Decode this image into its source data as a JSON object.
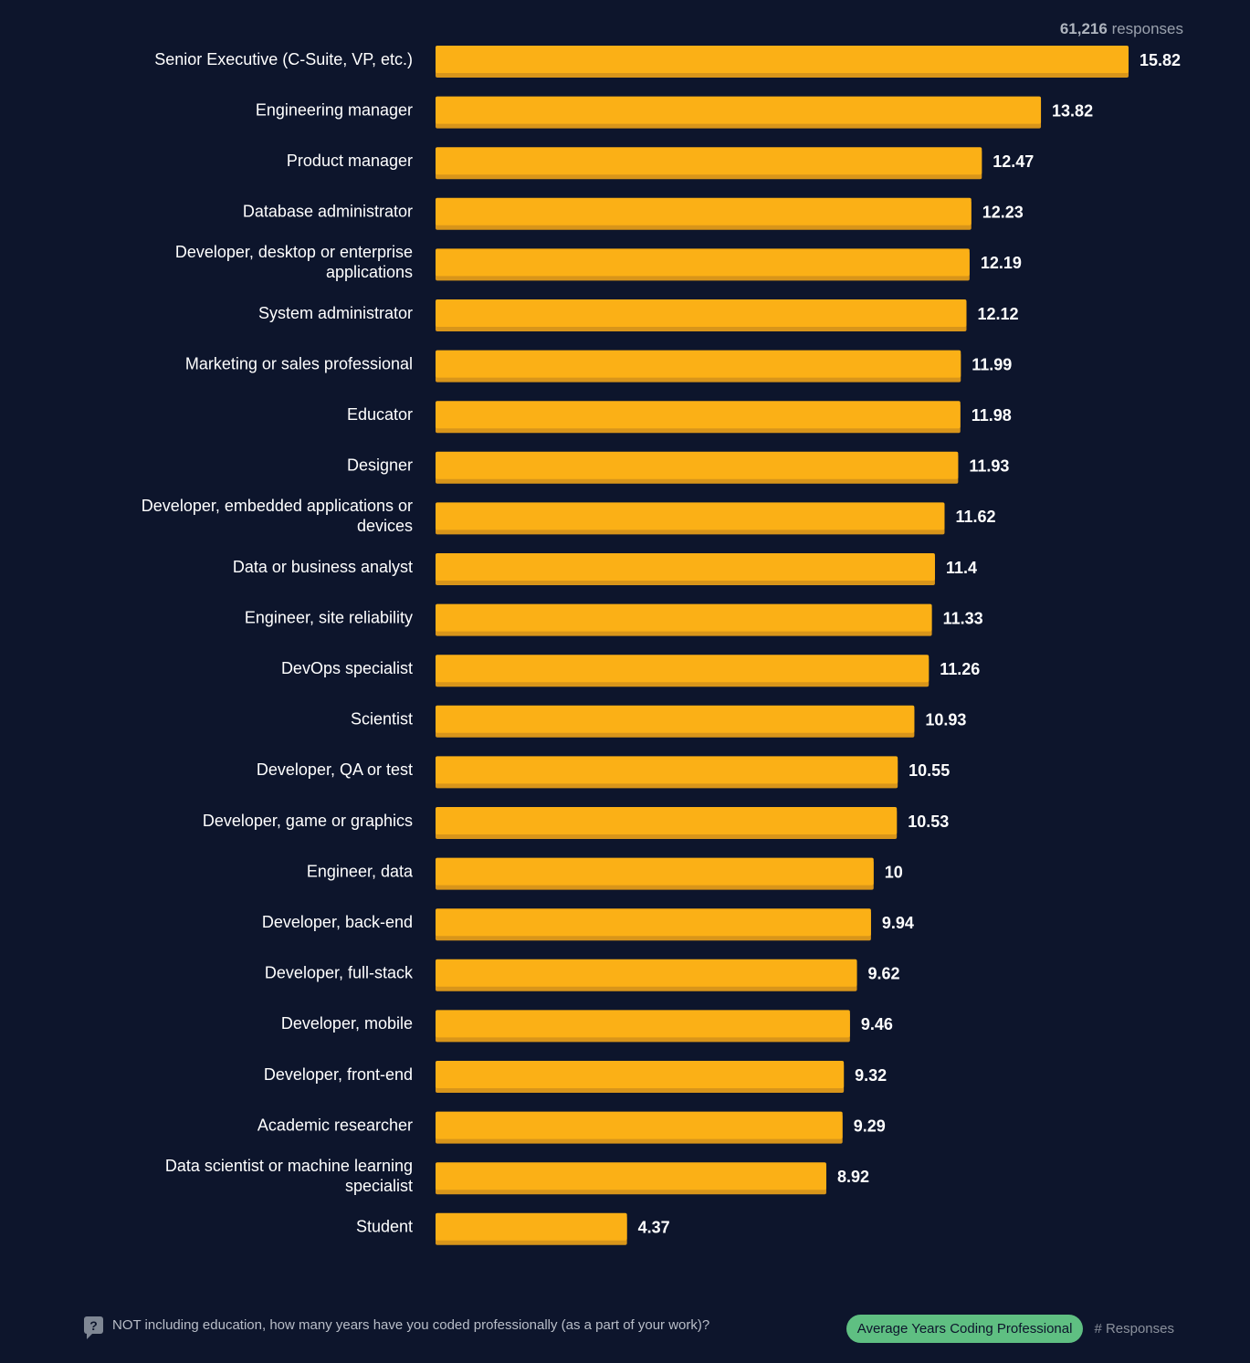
{
  "header": {
    "responses_count": "61,216",
    "responses_label": "responses"
  },
  "chart_data": {
    "type": "bar",
    "orientation": "horizontal",
    "categories": [
      [
        "Senior Executive (C-Suite, VP, etc.)"
      ],
      [
        "Engineering manager"
      ],
      [
        "Product manager"
      ],
      [
        "Database administrator"
      ],
      [
        "Developer, desktop or enterprise",
        "applications"
      ],
      [
        "System administrator"
      ],
      [
        "Marketing or sales professional"
      ],
      [
        "Educator"
      ],
      [
        "Designer"
      ],
      [
        "Developer, embedded applications or",
        "devices"
      ],
      [
        "Data or business analyst"
      ],
      [
        "Engineer, site reliability"
      ],
      [
        "DevOps specialist"
      ],
      [
        "Scientist"
      ],
      [
        "Developer, QA or test"
      ],
      [
        "Developer, game or graphics"
      ],
      [
        "Engineer, data"
      ],
      [
        "Developer, back-end"
      ],
      [
        "Developer, full-stack"
      ],
      [
        "Developer, mobile"
      ],
      [
        "Developer, front-end"
      ],
      [
        "Academic researcher"
      ],
      [
        "Data scientist or machine learning",
        "specialist"
      ],
      [
        "Student"
      ]
    ],
    "values": [
      15.82,
      13.82,
      12.47,
      12.23,
      12.19,
      12.12,
      11.99,
      11.98,
      11.93,
      11.62,
      11.4,
      11.33,
      11.26,
      10.93,
      10.55,
      10.53,
      10,
      9.94,
      9.62,
      9.46,
      9.32,
      9.29,
      8.92,
      4.37
    ],
    "value_labels": [
      "15.82",
      "13.82",
      "12.47",
      "12.23",
      "12.19",
      "12.12",
      "11.99",
      "11.98",
      "11.93",
      "11.62",
      "11.4",
      "11.33",
      "11.26",
      "10.93",
      "10.55",
      "10.53",
      "10",
      "9.94",
      "9.62",
      "9.46",
      "9.32",
      "9.29",
      "8.92",
      "4.37"
    ],
    "xlim": [
      0,
      15.82
    ],
    "grid": false,
    "bar_color": "#fbb016",
    "bar_shadow_color": "#d8951a"
  },
  "footer": {
    "question": "NOT including education, how many years have you coded professionally (as a part of your work)?",
    "legend_active": "Average Years Coding Professional",
    "legend_inactive": "# Responses"
  },
  "colors": {
    "background": "#0d152c",
    "legend_active": "#5fbf82"
  }
}
